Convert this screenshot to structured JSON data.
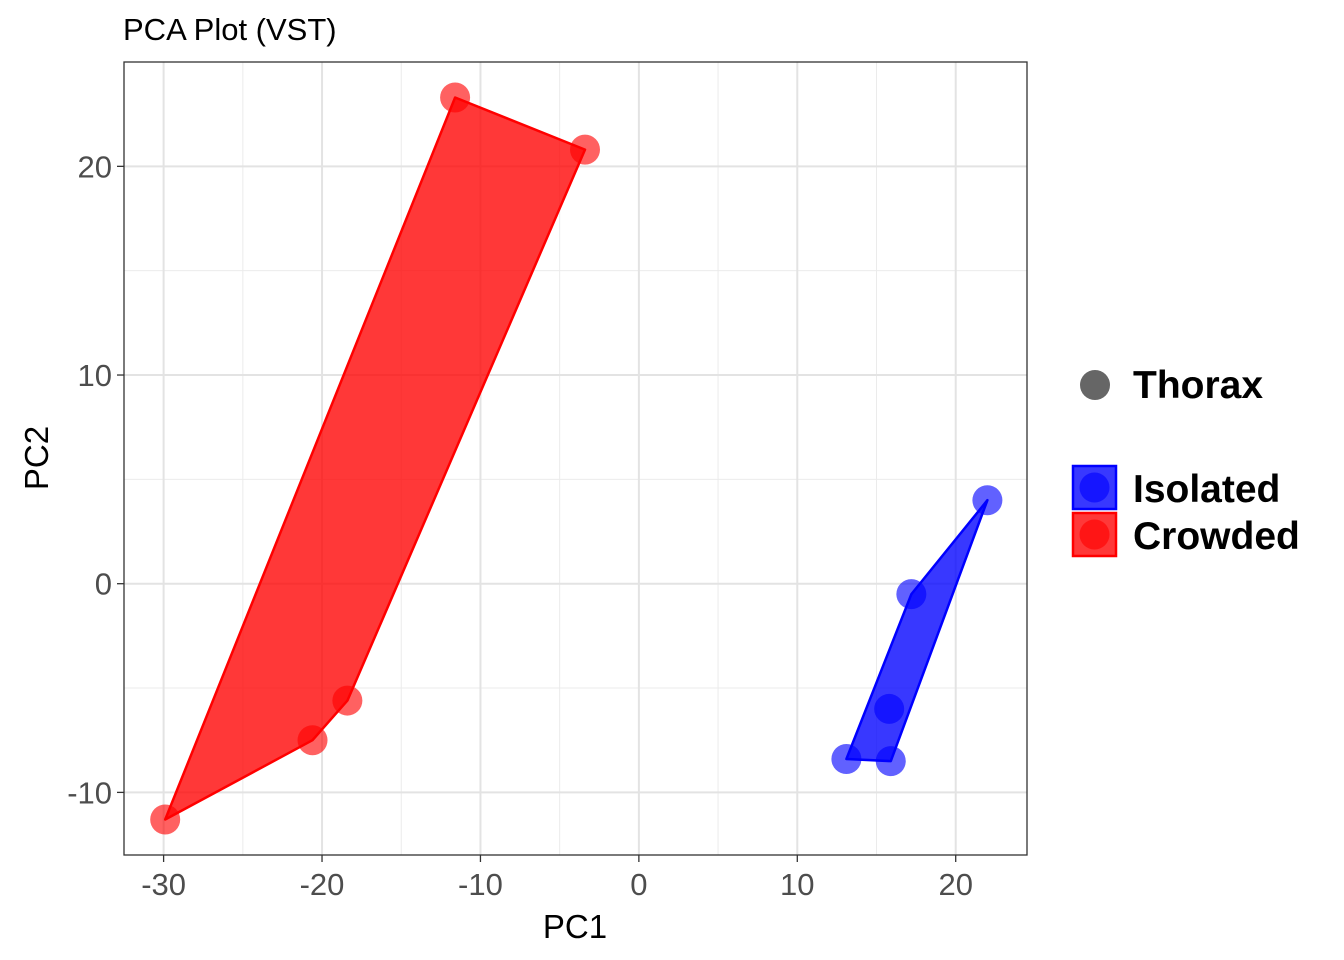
{
  "chart_data": {
    "type": "scatter",
    "title": "PCA Plot (VST)",
    "xlabel": "PC1",
    "ylabel": "PC2",
    "xlim": [
      -32.5,
      24.5
    ],
    "ylim": [
      -13,
      25
    ],
    "x_ticks": [
      -30,
      -20,
      -10,
      0,
      10,
      20
    ],
    "y_ticks": [
      -10,
      0,
      10,
      20
    ],
    "x_tick_labels": [
      "-30",
      "-20",
      "-10",
      "0",
      "10",
      "20"
    ],
    "y_tick_labels": [
      "-10",
      "0",
      "10",
      "20"
    ],
    "grid": true,
    "legend_position": "right",
    "shape_legend": {
      "label": "Thorax",
      "color": "#666666"
    },
    "series": [
      {
        "name": "Isolated",
        "color": "#0000ff",
        "points": [
          [
            22.0,
            4.0
          ],
          [
            17.2,
            -0.5
          ],
          [
            15.8,
            -6.0
          ],
          [
            13.1,
            -8.4
          ],
          [
            15.9,
            -8.5
          ]
        ],
        "hull": [
          [
            22.0,
            4.0
          ],
          [
            17.2,
            -0.5
          ],
          [
            13.1,
            -8.4
          ],
          [
            15.9,
            -8.5
          ]
        ]
      },
      {
        "name": "Crowded",
        "color": "#ff0000",
        "points": [
          [
            -11.6,
            23.3
          ],
          [
            -3.4,
            20.8
          ],
          [
            -18.4,
            -5.6
          ],
          [
            -20.6,
            -7.5
          ],
          [
            -29.9,
            -11.3
          ]
        ],
        "hull": [
          [
            -11.6,
            23.3
          ],
          [
            -3.4,
            20.8
          ],
          [
            -18.4,
            -5.6
          ],
          [
            -20.6,
            -7.5
          ],
          [
            -29.9,
            -11.3
          ]
        ]
      }
    ]
  }
}
